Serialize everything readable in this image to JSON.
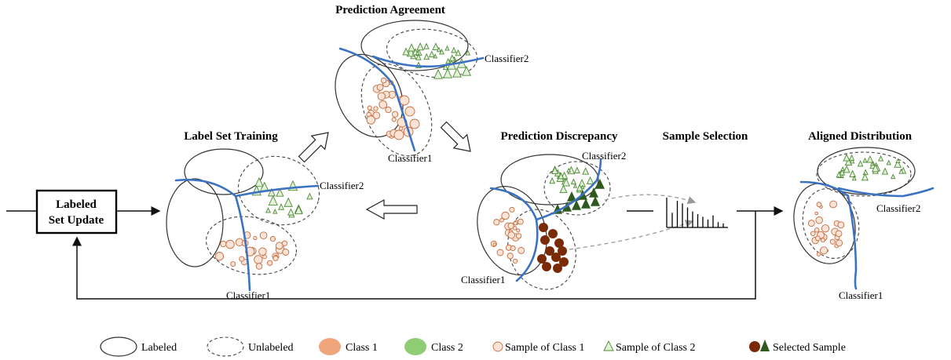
{
  "stages": {
    "label_set_training": "Label Set Training",
    "prediction_agreement": "Prediction Agreement",
    "prediction_discrepancy": "Prediction Discrepancy",
    "sample_selection": "Sample Selection",
    "aligned_distribution": "Aligned Distribution"
  },
  "update_box": {
    "line1": "Labeled",
    "line2": "Set Update"
  },
  "classifier_labels": {
    "classifier1": "Classifier1",
    "classifier2": "Classifier2"
  },
  "legend": {
    "labeled": "Labeled",
    "unlabeled": "Unlabeled",
    "class1": "Class 1",
    "class2": "Class 2",
    "sample_class1": "Sample of Class 1",
    "sample_class2": "Sample of Class 2",
    "selected_sample": "Selected Sample"
  },
  "colors": {
    "class1": "#f0a57a",
    "class2": "#8fcd74",
    "classifier_boundary": "#3b73c0",
    "selected_class1": "#7a2a06",
    "selected_class2": "#2f5a1e"
  },
  "histogram_bars": [
    0.55,
    1.0,
    0.9,
    0.75,
    0.6,
    0.5,
    0.4,
    0.3,
    0.45,
    0.2,
    0.15
  ]
}
